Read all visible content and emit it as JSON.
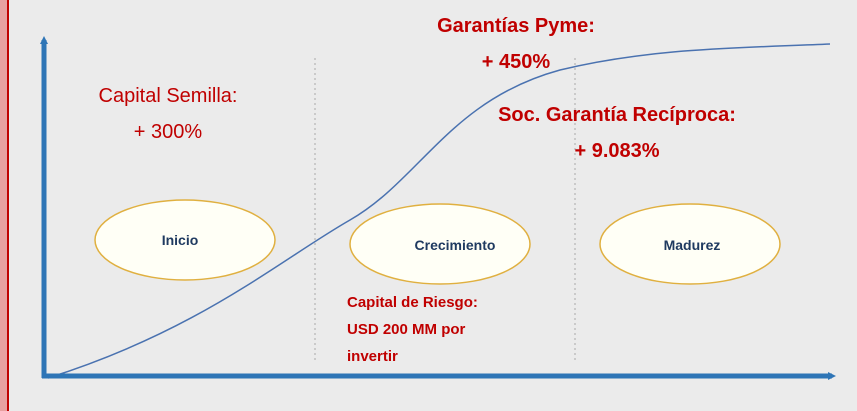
{
  "annotations": [
    {
      "lines": [
        "Capital Semilla:",
        "+ 300%"
      ]
    },
    {
      "lines": [
        "Garantías Pyme:",
        "+ 450%"
      ]
    },
    {
      "lines": [
        "Soc. Garantía Recíproca:",
        "+ 9.083%"
      ]
    },
    {
      "lines": [
        "Capital de Riesgo:",
        "USD 200 MM por",
        "invertir"
      ]
    }
  ],
  "stages": [
    "Inicio",
    "Crecimiento",
    "Madurez"
  ]
}
